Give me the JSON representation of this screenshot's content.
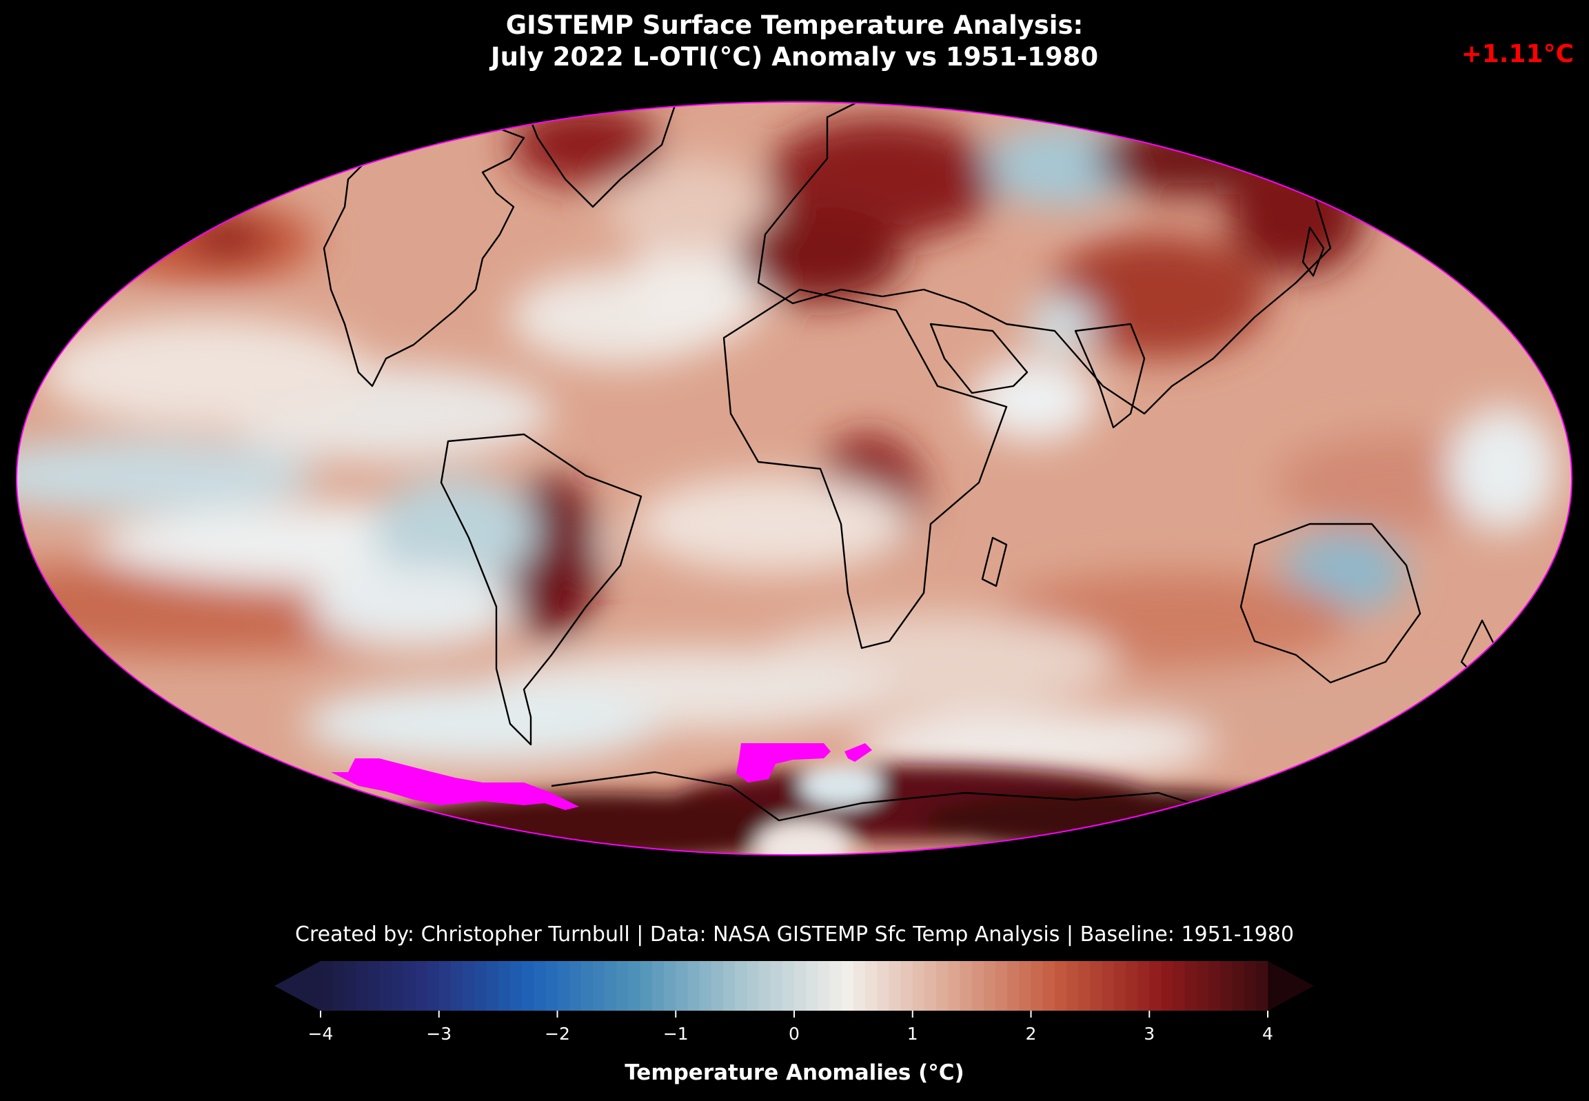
{
  "title_line1": "GISTEMP Surface Temperature Analysis:",
  "title_line2": "July 2022 L-OTI(°C) Anomaly vs 1951-1980",
  "global_anomaly": "+1.11°C",
  "credit": "Created by: Christopher Turnbull | Data: NASA GISTEMP Sfc Temp Analysis | Baseline: 1951-1980",
  "colorbar": {
    "label": "Temperature Anomalies (°C)",
    "min": -4,
    "max": 4,
    "ticks": [
      "−4",
      "−3",
      "−2",
      "−1",
      "0",
      "1",
      "2",
      "3",
      "4"
    ],
    "extend": "both"
  },
  "colors": {
    "background": "#000000",
    "anomaly_text": "#ff0000",
    "missing_data": "#ff00ff",
    "cmap": [
      "#1b1a40",
      "#26307a",
      "#1e63b8",
      "#4f92b8",
      "#a9c6cf",
      "#f2eeea",
      "#dca792",
      "#c45a3f",
      "#8e1a1c",
      "#3a0c10"
    ]
  },
  "map": {
    "projection": "Mollweide",
    "period": "July 2022",
    "baseline": "1951-1980"
  }
}
